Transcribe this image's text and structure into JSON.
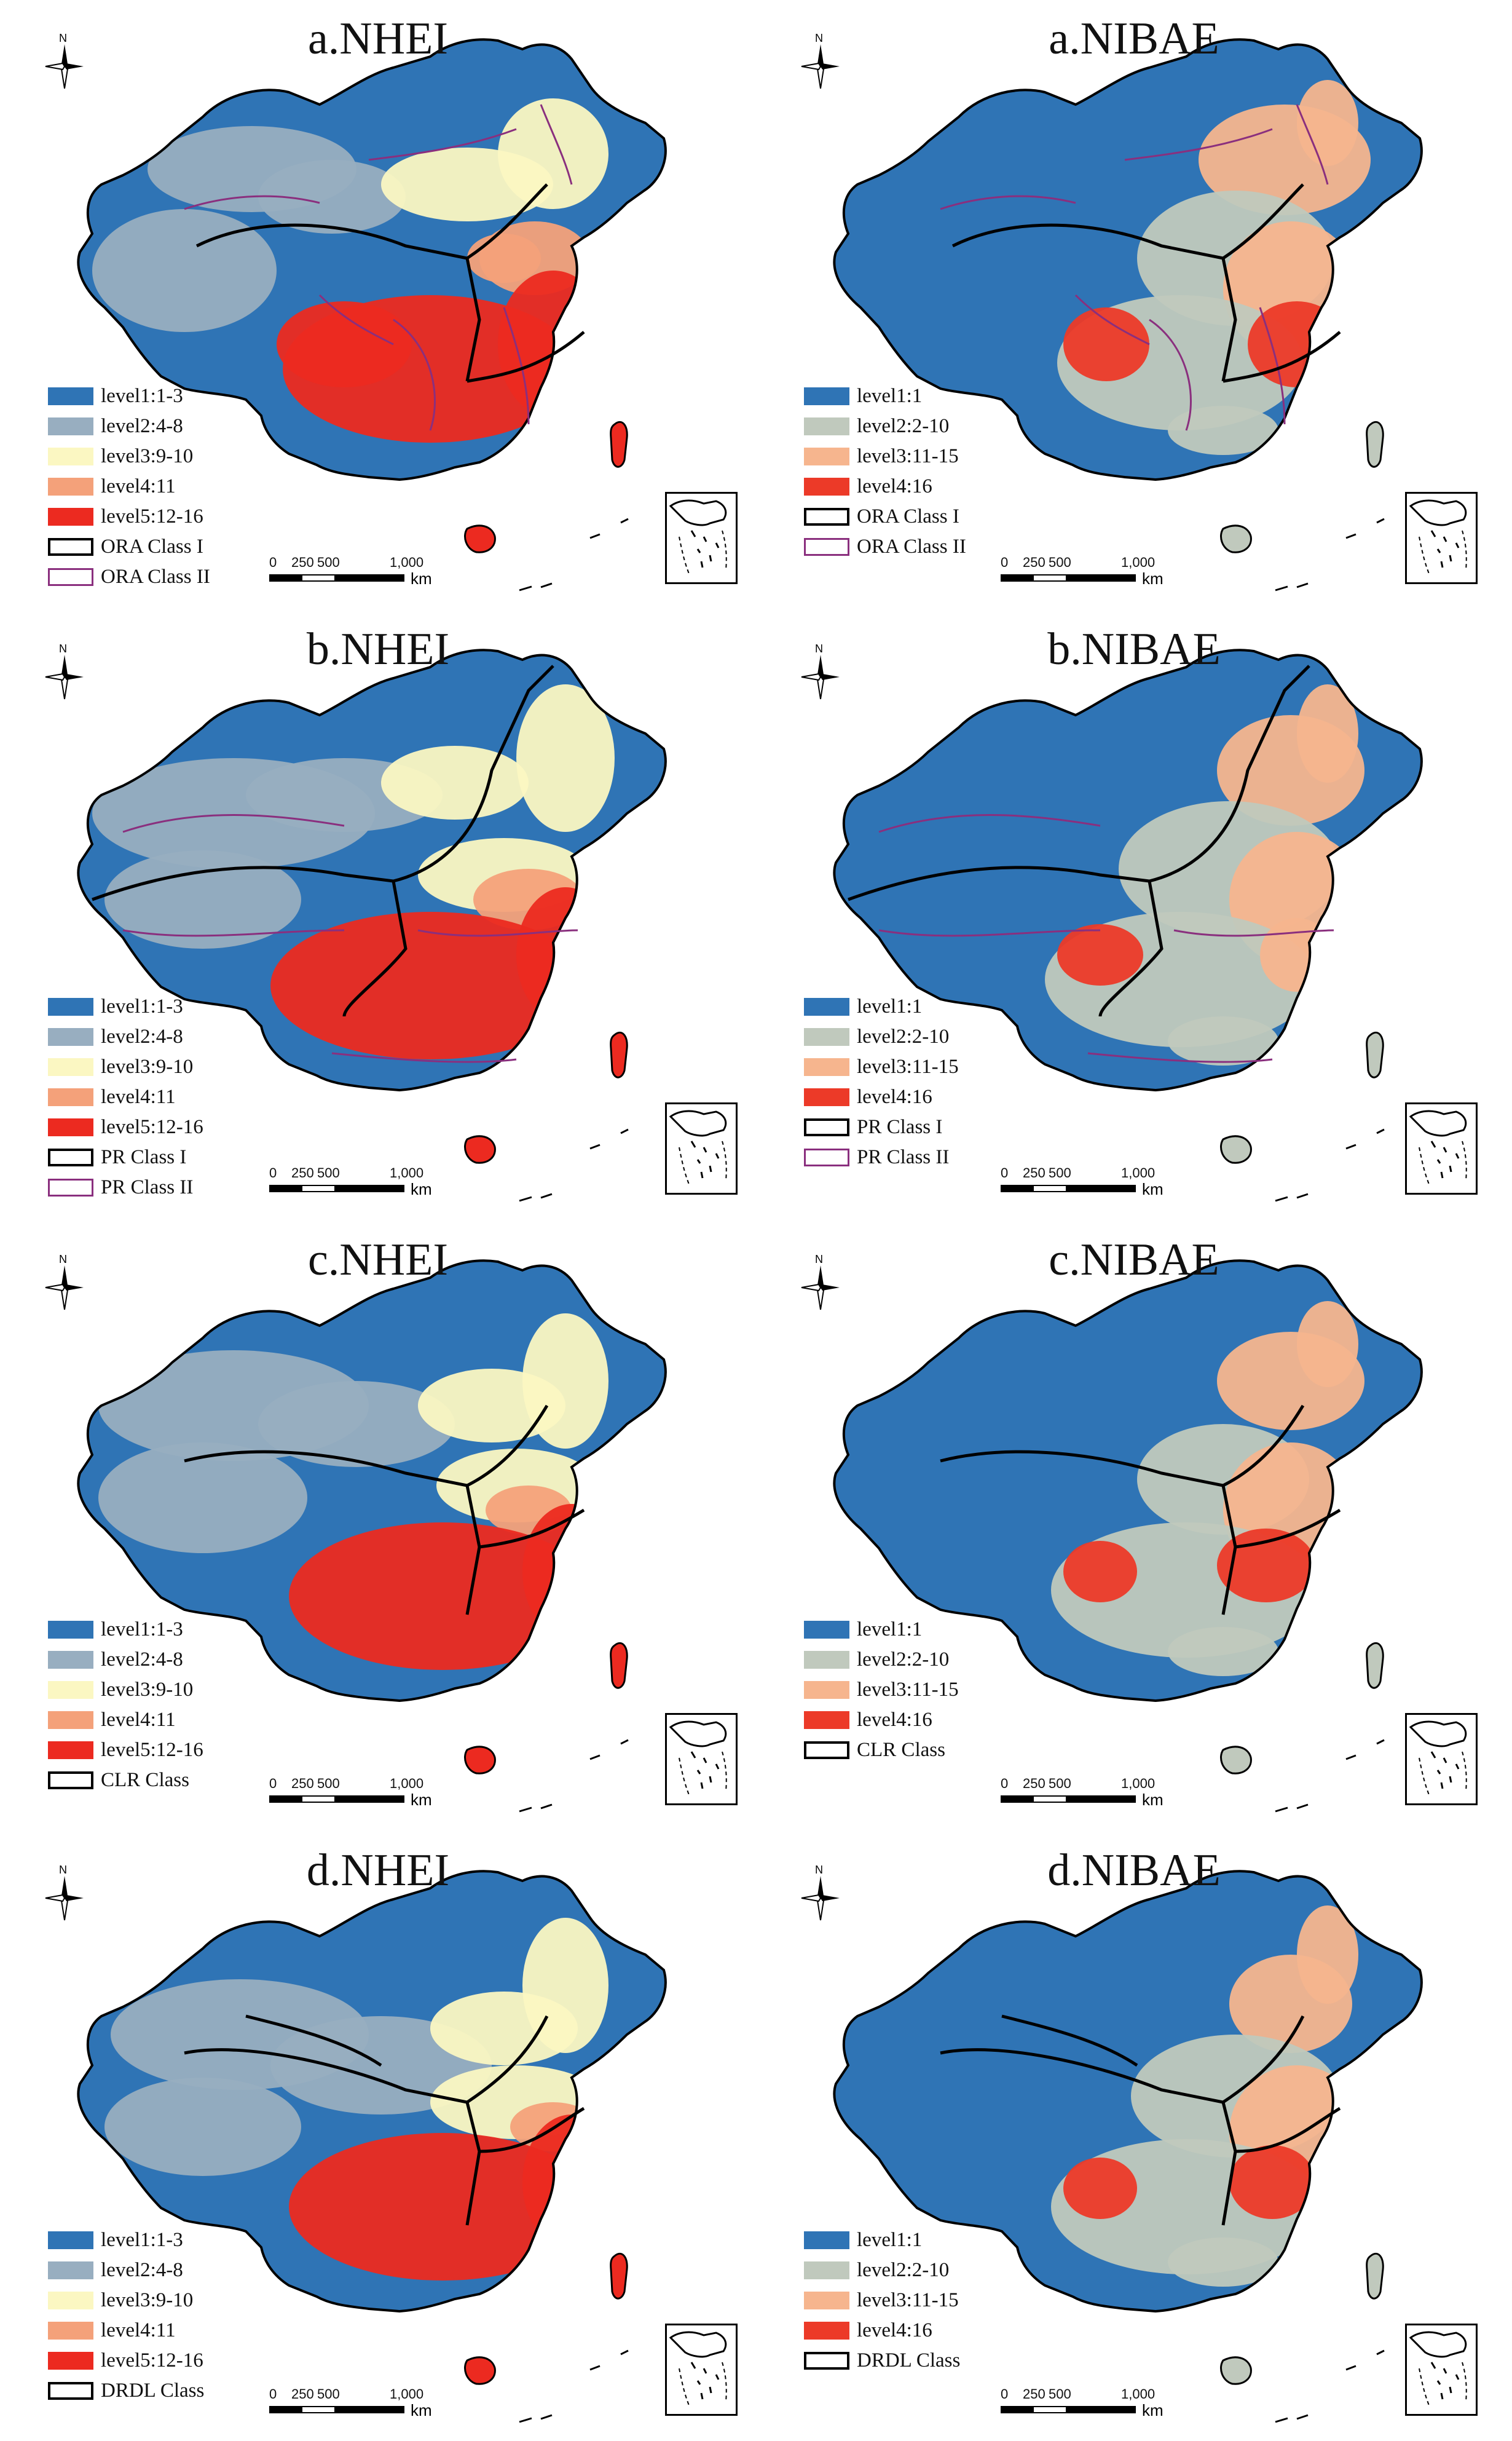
{
  "colors": {
    "nhei": [
      "#2f74b5",
      "#98aec0",
      "#fbf7c2",
      "#f4a17a",
      "#ec2a20"
    ],
    "nibae": [
      "#2f74b5",
      "#c0c9bd",
      "#f6b58e",
      "#ec3a28"
    ],
    "class_i_line": "#000000",
    "class_ii_line": "#8a2f7e"
  },
  "icons": {
    "north_arrow": "compass-north-arrow-icon",
    "inset": "south-china-sea-inset-icon",
    "scale": "scale-bar-icon"
  },
  "panels": [
    {
      "title": "a.NHEI",
      "legend": [
        {
          "label": "level1:1-3"
        },
        {
          "label": "level2:4-8"
        },
        {
          "label": "level3:9-10"
        },
        {
          "label": "level4:11"
        },
        {
          "label": "level5:12-16"
        },
        {
          "label": "ORA Class I"
        },
        {
          "label": "ORA Class II"
        }
      ],
      "north_label": "N",
      "scale": {
        "ticks": [
          "0",
          "250",
          "500",
          "1,000"
        ],
        "unit": "km"
      }
    },
    {
      "title": "a.NIBAE",
      "legend": [
        {
          "label": "level1:1"
        },
        {
          "label": "level2:2-10"
        },
        {
          "label": "level3:11-15"
        },
        {
          "label": "level4:16"
        },
        {
          "label": "ORA Class I"
        },
        {
          "label": "ORA Class II"
        }
      ],
      "north_label": "N",
      "scale": {
        "ticks": [
          "0",
          "250",
          "500",
          "1,000"
        ],
        "unit": "km"
      }
    },
    {
      "title": "b.NHEI",
      "legend": [
        {
          "label": "level1:1-3"
        },
        {
          "label": "level2:4-8"
        },
        {
          "label": "level3:9-10"
        },
        {
          "label": "level4:11"
        },
        {
          "label": "level5:12-16"
        },
        {
          "label": "PR Class I"
        },
        {
          "label": "PR Class II"
        }
      ],
      "north_label": "N",
      "scale": {
        "ticks": [
          "0",
          "250",
          "500",
          "1,000"
        ],
        "unit": "km"
      }
    },
    {
      "title": "b.NIBAE",
      "legend": [
        {
          "label": "level1:1"
        },
        {
          "label": "level2:2-10"
        },
        {
          "label": "level3:11-15"
        },
        {
          "label": "level4:16"
        },
        {
          "label": "PR Class I"
        },
        {
          "label": "PR Class II"
        }
      ],
      "north_label": "N",
      "scale": {
        "ticks": [
          "0",
          "250",
          "500",
          "1,000"
        ],
        "unit": "km"
      }
    },
    {
      "title": "c.NHEI",
      "legend": [
        {
          "label": "level1:1-3"
        },
        {
          "label": "level2:4-8"
        },
        {
          "label": "level3:9-10"
        },
        {
          "label": "level4:11"
        },
        {
          "label": "level5:12-16"
        },
        {
          "label": "CLR Class"
        }
      ],
      "north_label": "N",
      "scale": {
        "ticks": [
          "0",
          "250",
          "500",
          "1,000"
        ],
        "unit": "km"
      }
    },
    {
      "title": "c.NIBAE",
      "legend": [
        {
          "label": "level1:1"
        },
        {
          "label": "level2:2-10"
        },
        {
          "label": "level3:11-15"
        },
        {
          "label": "level4:16"
        },
        {
          "label": "CLR Class"
        }
      ],
      "north_label": "N",
      "scale": {
        "ticks": [
          "0",
          "250",
          "500",
          "1,000"
        ],
        "unit": "km"
      }
    },
    {
      "title": "d.NHEI",
      "legend": [
        {
          "label": "level1:1-3"
        },
        {
          "label": "level2:4-8"
        },
        {
          "label": "level3:9-10"
        },
        {
          "label": "level4:11"
        },
        {
          "label": "level5:12-16"
        },
        {
          "label": "DRDL Class"
        }
      ],
      "north_label": "N",
      "scale": {
        "ticks": [
          "0",
          "250",
          "500",
          "1,000"
        ],
        "unit": "km"
      }
    },
    {
      "title": "d.NIBAE",
      "legend": [
        {
          "label": "level1:1"
        },
        {
          "label": "level2:2-10"
        },
        {
          "label": "level3:11-15"
        },
        {
          "label": "level4:16"
        },
        {
          "label": "DRDL Class"
        }
      ],
      "north_label": "N",
      "scale": {
        "ticks": [
          "0",
          "250",
          "500",
          "1,000"
        ],
        "unit": "km"
      }
    }
  ]
}
